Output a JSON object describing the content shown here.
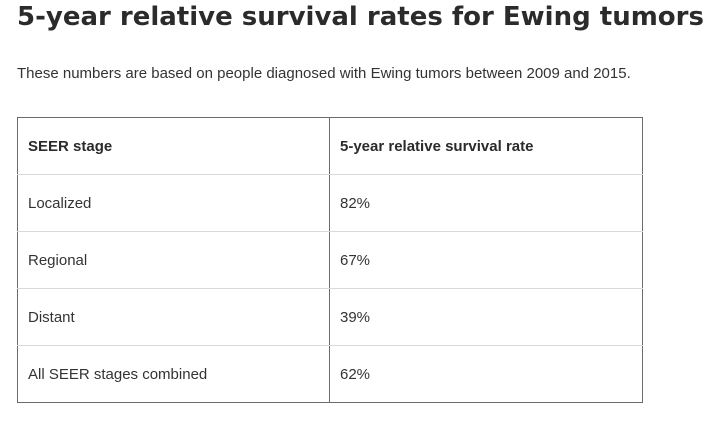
{
  "heading": "5-year relative survival rates for Ewing tumors",
  "intro": "These numbers are based on people diagnosed with Ewing tumors between 2009 and 2015.",
  "table": {
    "headers": [
      "SEER stage",
      "5-year relative survival rate"
    ],
    "rows": [
      [
        "Localized",
        "82%"
      ],
      [
        "Regional",
        "67%"
      ],
      [
        "Distant",
        "39%"
      ],
      [
        "All SEER stages combined",
        "62%"
      ]
    ]
  }
}
